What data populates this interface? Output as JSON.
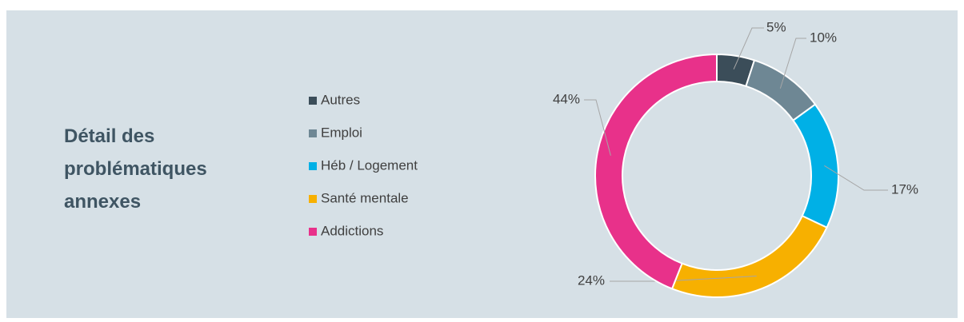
{
  "chart_data": {
    "type": "donut",
    "title": "Détail des problématiques annexes",
    "categories": [
      "Autres",
      "Emploi",
      "Héb / Logement",
      "Santé mentale",
      "Addictions"
    ],
    "values": [
      5,
      10,
      17,
      24,
      44
    ],
    "value_labels": [
      "5%",
      "10%",
      "17%",
      "24%",
      "44%"
    ],
    "colors": [
      "#3b4d59",
      "#6e8794",
      "#00b0e6",
      "#f7b000",
      "#e8318a"
    ],
    "legend": "left"
  }
}
